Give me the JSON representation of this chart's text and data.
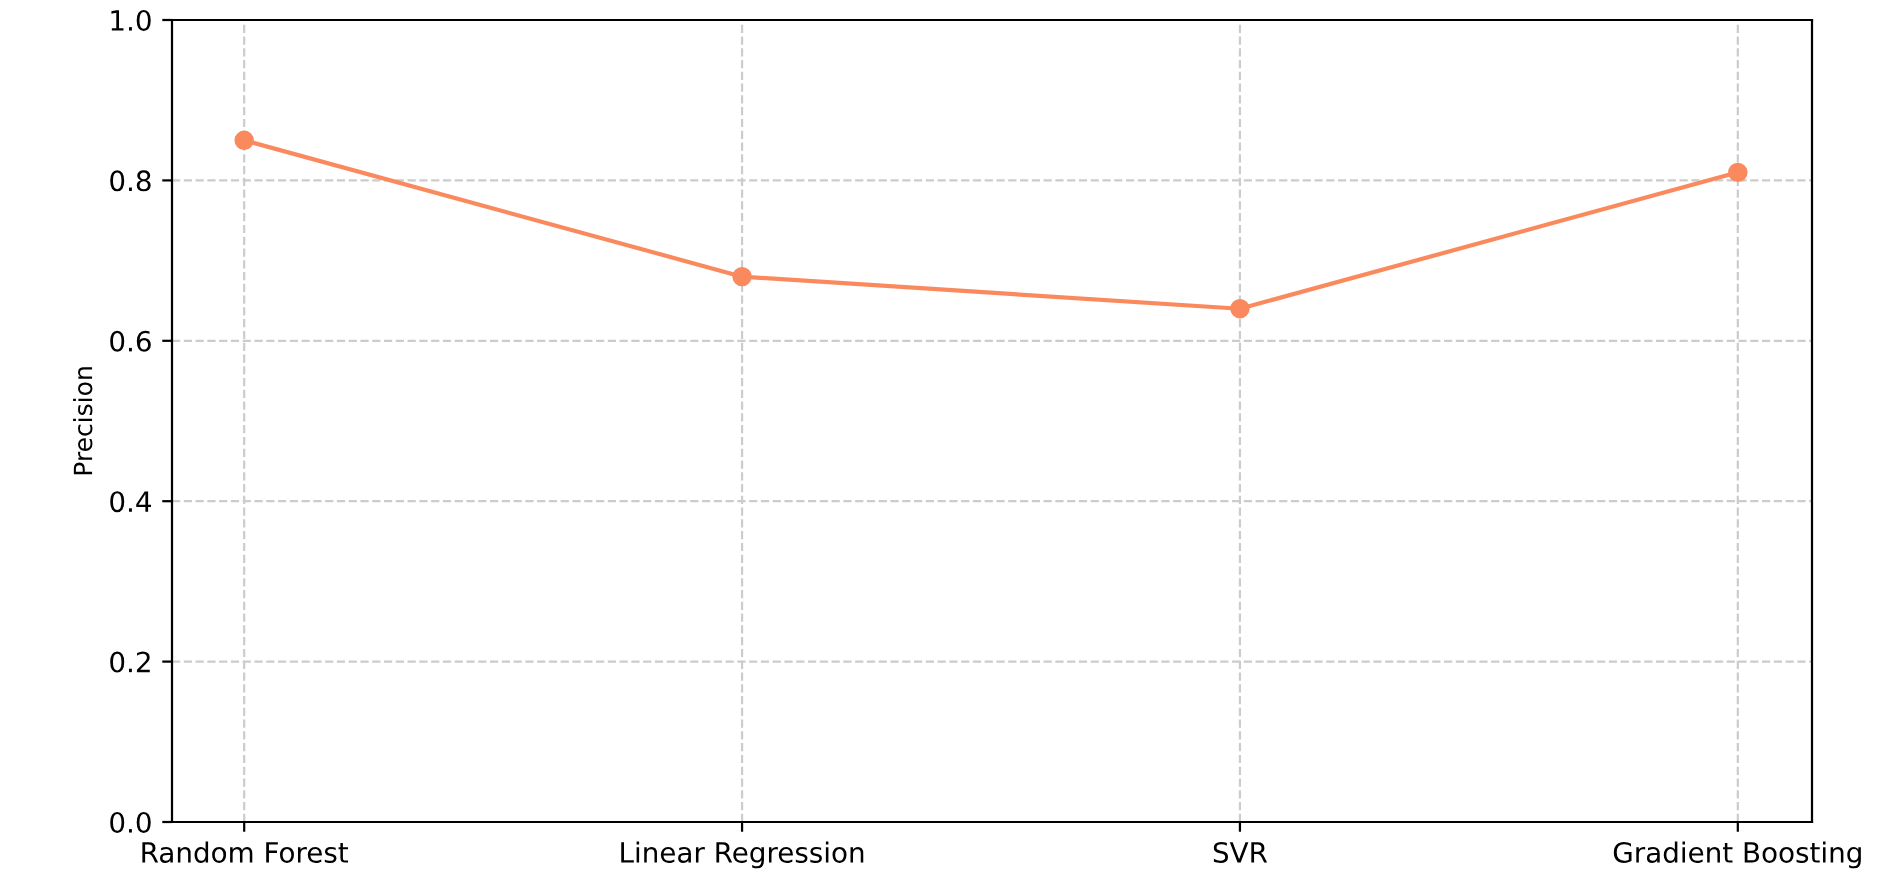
{
  "chart_data": {
    "type": "line",
    "ylabel": "Precision",
    "categories": [
      "Random Forest",
      "Linear Regression",
      "SVR",
      "Gradient Boosting"
    ],
    "series": [
      {
        "color": "#fa8a5e",
        "values": [
          0.85,
          0.68,
          0.64,
          0.81
        ]
      }
    ],
    "ylim": [
      0.0,
      1.0
    ],
    "yticks": [
      {
        "value": 0.0,
        "label": "0.0"
      },
      {
        "value": 0.2,
        "label": "0.2"
      },
      {
        "value": 0.4,
        "label": "0.4"
      },
      {
        "value": 0.6,
        "label": "0.6"
      },
      {
        "value": 0.8,
        "label": "0.8"
      },
      {
        "value": 1.0,
        "label": "1.0"
      }
    ],
    "grid": true,
    "marker": "circle",
    "line_style": "solid"
  }
}
